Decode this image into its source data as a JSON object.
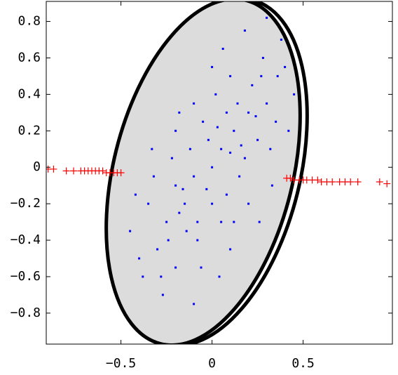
{
  "chart_data": {
    "type": "scatter",
    "xlim": [
      -0.91,
      0.99
    ],
    "ylim": [
      -0.97,
      0.91
    ],
    "xticks": [
      {
        "value": -0.5,
        "label": "−0.5"
      },
      0,
      0.5
    ],
    "yticks": [
      0.8,
      0.6,
      0.4,
      0.2,
      0,
      {
        "value": -0.2,
        "label": "−0.2"
      },
      {
        "value": -0.4,
        "label": "−0.4"
      },
      {
        "value": -0.6,
        "label": "−0.6"
      },
      {
        "value": -0.8,
        "label": "−0.8"
      }
    ],
    "series": [
      {
        "color": "#0000ff",
        "marker": "dot",
        "x": [
          0,
          0.05,
          -0.1,
          0.12,
          -0.15,
          0.2,
          -0.2,
          0.08,
          -0.05,
          0.15,
          -0.25,
          0.25,
          0.02,
          -0.08,
          0.3,
          -0.3,
          0.1,
          -0.12,
          0.18,
          -0.18,
          0.22,
          -0.22,
          0.05,
          -0.02,
          0.35,
          -0.35,
          0.4,
          -0.4,
          0.28,
          -0.28,
          0.06,
          -0.06,
          0.14,
          -0.14,
          0.32,
          -0.32,
          0.45,
          -0.45,
          0.2,
          -0.2,
          0.38,
          -0.27,
          0.1,
          -0.1,
          0.0,
          0.03,
          -0.03,
          0.16,
          -0.16,
          0.24,
          -0.24,
          0.12,
          -0.38,
          0.42,
          0.33,
          -0.33,
          0.08,
          -0.08,
          0.27,
          -0.1,
          0.18,
          0.3,
          0.26,
          -0.42,
          0.0,
          -0.2,
          0.36,
          0.04,
          -0.18,
          0.1
        ],
        "y": [
          0,
          0.1,
          -0.05,
          0.2,
          -0.2,
          0.3,
          -0.1,
          -0.15,
          0.25,
          -0.05,
          -0.3,
          0.15,
          0.4,
          -0.4,
          0.35,
          -0.45,
          0.5,
          0.1,
          0.05,
          -0.25,
          0.45,
          0.05,
          -0.3,
          0.15,
          0.25,
          -0.2,
          0.55,
          -0.5,
          0.6,
          -0.6,
          0.65,
          -0.55,
          0.35,
          -0.35,
          0.1,
          -0.05,
          0.4,
          -0.35,
          -0.2,
          0.2,
          0.7,
          -0.7,
          -0.45,
          0.35,
          -0.2,
          0.22,
          -0.12,
          0.12,
          -0.12,
          0.28,
          -0.4,
          -0.3,
          -0.6,
          0.2,
          -0.1,
          0.1,
          0.3,
          -0.3,
          0.5,
          -0.75,
          0.75,
          0.82,
          -0.3,
          -0.15,
          0.55,
          -0.55,
          0.5,
          -0.6,
          0.3,
          0.08
        ]
      },
      {
        "color": "#ff0000",
        "marker": "plus",
        "x": [
          -0.9,
          -0.87,
          -0.8,
          -0.76,
          -0.72,
          -0.7,
          -0.68,
          -0.66,
          -0.64,
          -0.62,
          -0.6,
          -0.58,
          -0.56,
          -0.54,
          -0.52,
          -0.5,
          0.41,
          0.43,
          0.45,
          0.48,
          0.5,
          0.52,
          0.55,
          0.58,
          0.6,
          0.63,
          0.66,
          0.7,
          0.73,
          0.76,
          0.8,
          0.92,
          0.96
        ],
        "y": [
          -0.01,
          -0.01,
          -0.02,
          -0.02,
          -0.02,
          -0.02,
          -0.02,
          -0.02,
          -0.02,
          -0.02,
          -0.02,
          -0.03,
          -0.03,
          -0.03,
          -0.03,
          -0.03,
          -0.06,
          -0.06,
          -0.07,
          -0.07,
          -0.07,
          -0.07,
          -0.07,
          -0.07,
          -0.08,
          -0.08,
          -0.08,
          -0.08,
          -0.08,
          -0.08,
          -0.08,
          -0.08,
          -0.09
        ]
      }
    ]
  }
}
